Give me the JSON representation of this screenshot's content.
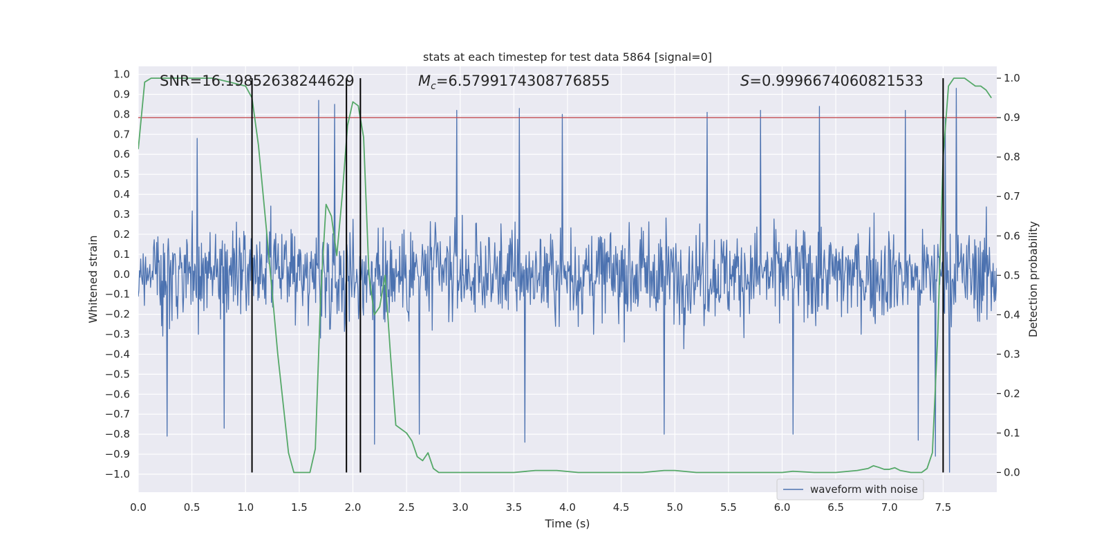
{
  "chart_data": {
    "type": "line",
    "title": "stats at each timestep for test data 5864 [signal=0]",
    "xlabel": "Time (s)",
    "ylabel": "Whitened strain",
    "y2label": "Detection probability",
    "xlim": [
      0.0,
      8.0
    ],
    "ylim": [
      -1.09,
      1.04
    ],
    "y2lim": [
      -0.05,
      1.03
    ],
    "xticks": [
      "0.0",
      "0.5",
      "1.0",
      "1.5",
      "2.0",
      "2.5",
      "3.0",
      "3.5",
      "4.0",
      "4.5",
      "5.0",
      "5.5",
      "6.0",
      "6.5",
      "7.0",
      "7.5"
    ],
    "xtick_values": [
      0.0,
      0.5,
      1.0,
      1.5,
      2.0,
      2.5,
      3.0,
      3.5,
      4.0,
      4.5,
      5.0,
      5.5,
      6.0,
      6.5,
      7.0,
      7.5
    ],
    "yticks": [
      "1.0",
      "0.9",
      "0.8",
      "0.7",
      "0.6",
      "0.5",
      "0.4",
      "0.3",
      "0.2",
      "0.1",
      "0.0",
      "−0.1",
      "−0.2",
      "−0.3",
      "−0.4",
      "−0.5",
      "−0.6",
      "−0.7",
      "−0.8",
      "−0.9",
      "−1.0"
    ],
    "ytick_values": [
      1.0,
      0.9,
      0.8,
      0.7,
      0.6,
      0.5,
      0.4,
      0.3,
      0.2,
      0.1,
      0.0,
      -0.1,
      -0.2,
      -0.3,
      -0.4,
      -0.5,
      -0.6,
      -0.7,
      -0.8,
      -0.9,
      -1.0
    ],
    "y2ticks": [
      "1.0",
      "0.9",
      "0.8",
      "0.7",
      "0.6",
      "0.5",
      "0.4",
      "0.3",
      "0.2",
      "0.1",
      "0.0"
    ],
    "y2tick_values": [
      1.0,
      0.9,
      0.8,
      0.7,
      0.6,
      0.5,
      0.4,
      0.3,
      0.2,
      0.1,
      0.0
    ],
    "annotations": {
      "snr": "SNR=16.19852638244629",
      "mc_symbol": "M",
      "mc_sub": "c",
      "mc_value": "=6.5799174308776855",
      "s_symbol": "S",
      "s_value": "=0.9996674060821533"
    },
    "threshold": {
      "value": 0.9,
      "axis": "y2",
      "color": "#c44e52"
    },
    "vertical_lines": [
      1.06,
      1.94,
      2.07,
      7.5
    ],
    "series": [
      {
        "name": "waveform with noise",
        "color": "#4c72b0",
        "kind": "noise",
        "duration": 8.0,
        "samples": 1400,
        "typical_amplitude": 0.3,
        "peak_values": [
          {
            "t": 0.55,
            "v": 0.68
          },
          {
            "t": 0.27,
            "v": -0.81
          },
          {
            "t": 0.8,
            "v": -0.77
          },
          {
            "t": 1.68,
            "v": 0.87
          },
          {
            "t": 1.83,
            "v": 0.85
          },
          {
            "t": 2.2,
            "v": -0.85
          },
          {
            "t": 2.62,
            "v": -0.8
          },
          {
            "t": 2.97,
            "v": 0.82
          },
          {
            "t": 3.55,
            "v": 0.83
          },
          {
            "t": 3.6,
            "v": -0.84
          },
          {
            "t": 3.95,
            "v": 0.8
          },
          {
            "t": 4.9,
            "v": -0.8
          },
          {
            "t": 5.3,
            "v": 0.81
          },
          {
            "t": 5.8,
            "v": 0.82
          },
          {
            "t": 6.35,
            "v": 0.84
          },
          {
            "t": 6.1,
            "v": -0.8
          },
          {
            "t": 7.15,
            "v": 0.82
          },
          {
            "t": 7.27,
            "v": -0.83
          },
          {
            "t": 7.52,
            "v": 0.78
          },
          {
            "t": 7.56,
            "v": -0.99
          },
          {
            "t": 7.62,
            "v": 0.93
          },
          {
            "t": 7.43,
            "v": -0.91
          }
        ]
      },
      {
        "name": "detection probability",
        "color": "#55a868",
        "axis": "y2",
        "x": [
          0.0,
          0.06,
          0.12,
          0.3,
          0.5,
          0.7,
          0.85,
          1.0,
          1.06,
          1.12,
          1.2,
          1.3,
          1.4,
          1.45,
          1.5,
          1.6,
          1.65,
          1.7,
          1.75,
          1.8,
          1.85,
          1.9,
          1.95,
          2.0,
          2.05,
          2.1,
          2.15,
          2.2,
          2.25,
          2.3,
          2.35,
          2.4,
          2.45,
          2.5,
          2.55,
          2.6,
          2.65,
          2.7,
          2.75,
          2.8,
          2.85,
          3.0,
          3.1,
          3.2,
          3.3,
          3.4,
          3.5,
          3.7,
          3.9,
          4.1,
          4.3,
          4.5,
          4.7,
          4.9,
          5.0,
          5.2,
          5.5,
          5.8,
          6.0,
          6.1,
          6.3,
          6.5,
          6.7,
          6.8,
          6.85,
          6.9,
          6.95,
          7.0,
          7.05,
          7.1,
          7.2,
          7.3,
          7.35,
          7.4,
          7.45,
          7.5,
          7.55,
          7.6,
          7.65,
          7.7,
          7.75,
          7.8,
          7.85,
          7.9,
          7.95
        ],
        "y": [
          0.82,
          0.99,
          1.0,
          1.0,
          1.0,
          1.0,
          0.99,
          0.98,
          0.95,
          0.83,
          0.6,
          0.3,
          0.05,
          0.0,
          0.0,
          0.0,
          0.06,
          0.45,
          0.68,
          0.65,
          0.55,
          0.7,
          0.88,
          0.94,
          0.93,
          0.85,
          0.5,
          0.4,
          0.42,
          0.5,
          0.3,
          0.12,
          0.11,
          0.1,
          0.08,
          0.04,
          0.03,
          0.05,
          0.01,
          0.0,
          0.0,
          0.0,
          0.0,
          0.0,
          0.0,
          0.0,
          0.0,
          0.005,
          0.005,
          0.0,
          0.0,
          0.0,
          0.0,
          0.005,
          0.005,
          0.0,
          0.0,
          0.0,
          0.0,
          0.003,
          0.0,
          0.0,
          0.005,
          0.01,
          0.017,
          0.013,
          0.008,
          0.008,
          0.012,
          0.005,
          0.0,
          0.0,
          0.01,
          0.05,
          0.35,
          0.8,
          0.98,
          1.0,
          1.0,
          1.0,
          0.99,
          0.98,
          0.98,
          0.97,
          0.95
        ]
      }
    ],
    "legend": {
      "label": "waveform with noise",
      "placement": "bottom-right"
    },
    "grid": true,
    "background": "#eaeaf2"
  }
}
